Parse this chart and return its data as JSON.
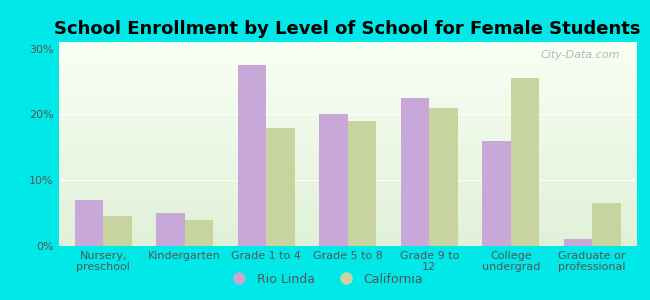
{
  "title": "School Enrollment by Level of School for Female Students",
  "categories": [
    "Nursery,\npreschool",
    "Kindergarten",
    "Grade 1 to 4",
    "Grade 5 to 8",
    "Grade 9 to\n12",
    "College\nundergrad",
    "Graduate or\nprofessional"
  ],
  "rio_linda": [
    7.0,
    5.0,
    27.5,
    20.0,
    22.5,
    16.0,
    1.0
  ],
  "california": [
    4.5,
    4.0,
    18.0,
    19.0,
    21.0,
    25.5,
    6.5
  ],
  "rio_linda_color": "#c8a8d8",
  "california_color": "#c8d4a0",
  "background_outer": "#00e8e8",
  "background_inner_top": "#e0f0d8",
  "background_inner_bottom": "#f8fff4",
  "ylim": [
    0,
    31
  ],
  "yticks": [
    0,
    10,
    20,
    30
  ],
  "ytick_labels": [
    "0%",
    "10%",
    "20%",
    "30%"
  ],
  "legend_labels": [
    "Rio Linda",
    "California"
  ],
  "bar_width": 0.35,
  "title_fontsize": 13,
  "tick_fontsize": 8,
  "legend_fontsize": 9,
  "watermark": "City-Data.com"
}
